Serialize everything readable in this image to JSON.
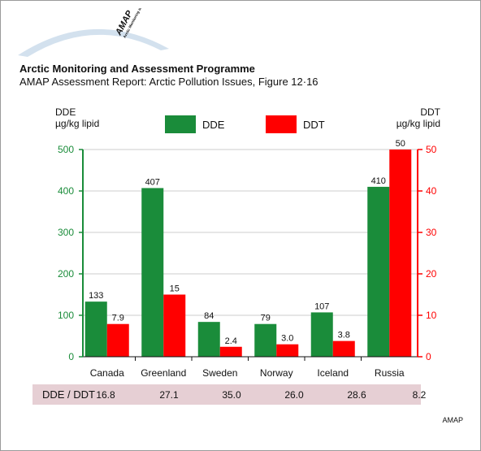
{
  "header": {
    "logo_text": "AMAP",
    "logo_caption": "Arctic Monitoring and Assessment Programme",
    "title": "Arctic Monitoring and Assessment Programme",
    "subtitle": "AMAP Assessment Report: Arctic Pollution Issues, Figure 12·16"
  },
  "colors": {
    "dde": "#1a8c3a",
    "ddt": "#ff0000",
    "ratio_band": "#e6cfd4",
    "grid": "#cccccc"
  },
  "axes": {
    "left_unit_line1": "DDE",
    "left_unit_line2": "µg/kg lipid",
    "right_unit_line1": "DDT",
    "right_unit_line2": "µg/kg lipid"
  },
  "legend": {
    "dde_label": "DDE",
    "ddt_label": "DDT"
  },
  "chart_data": {
    "type": "bar",
    "categories": [
      "Canada",
      "Greenland",
      "Sweden",
      "Norway",
      "Iceland",
      "Russia"
    ],
    "series": [
      {
        "name": "DDE",
        "axis": "left",
        "color": "#1a8c3a",
        "values": [
          133,
          407,
          84,
          79,
          107,
          410
        ],
        "labels": [
          "133",
          "407",
          "84",
          "79",
          "107",
          "410"
        ]
      },
      {
        "name": "DDT",
        "axis": "right",
        "color": "#ff0000",
        "values": [
          7.9,
          15,
          2.4,
          3.0,
          3.8,
          50
        ],
        "labels": [
          "7.9",
          "15",
          "2.4",
          "3.0",
          "3.8",
          "50"
        ]
      }
    ],
    "y_left": {
      "min": 0,
      "max": 500,
      "ticks": [
        0,
        100,
        200,
        300,
        400,
        500
      ]
    },
    "y_right": {
      "min": 0,
      "max": 50,
      "ticks": [
        0,
        10,
        20,
        30,
        40,
        50
      ]
    },
    "grid": true,
    "legend_position": "top-center"
  },
  "ratio_row": {
    "label": "DDE / DDT",
    "values": [
      "16.8",
      "27.1",
      "35.0",
      "26.0",
      "28.6",
      "8.2"
    ]
  },
  "footer": {
    "credit": "AMAP"
  }
}
